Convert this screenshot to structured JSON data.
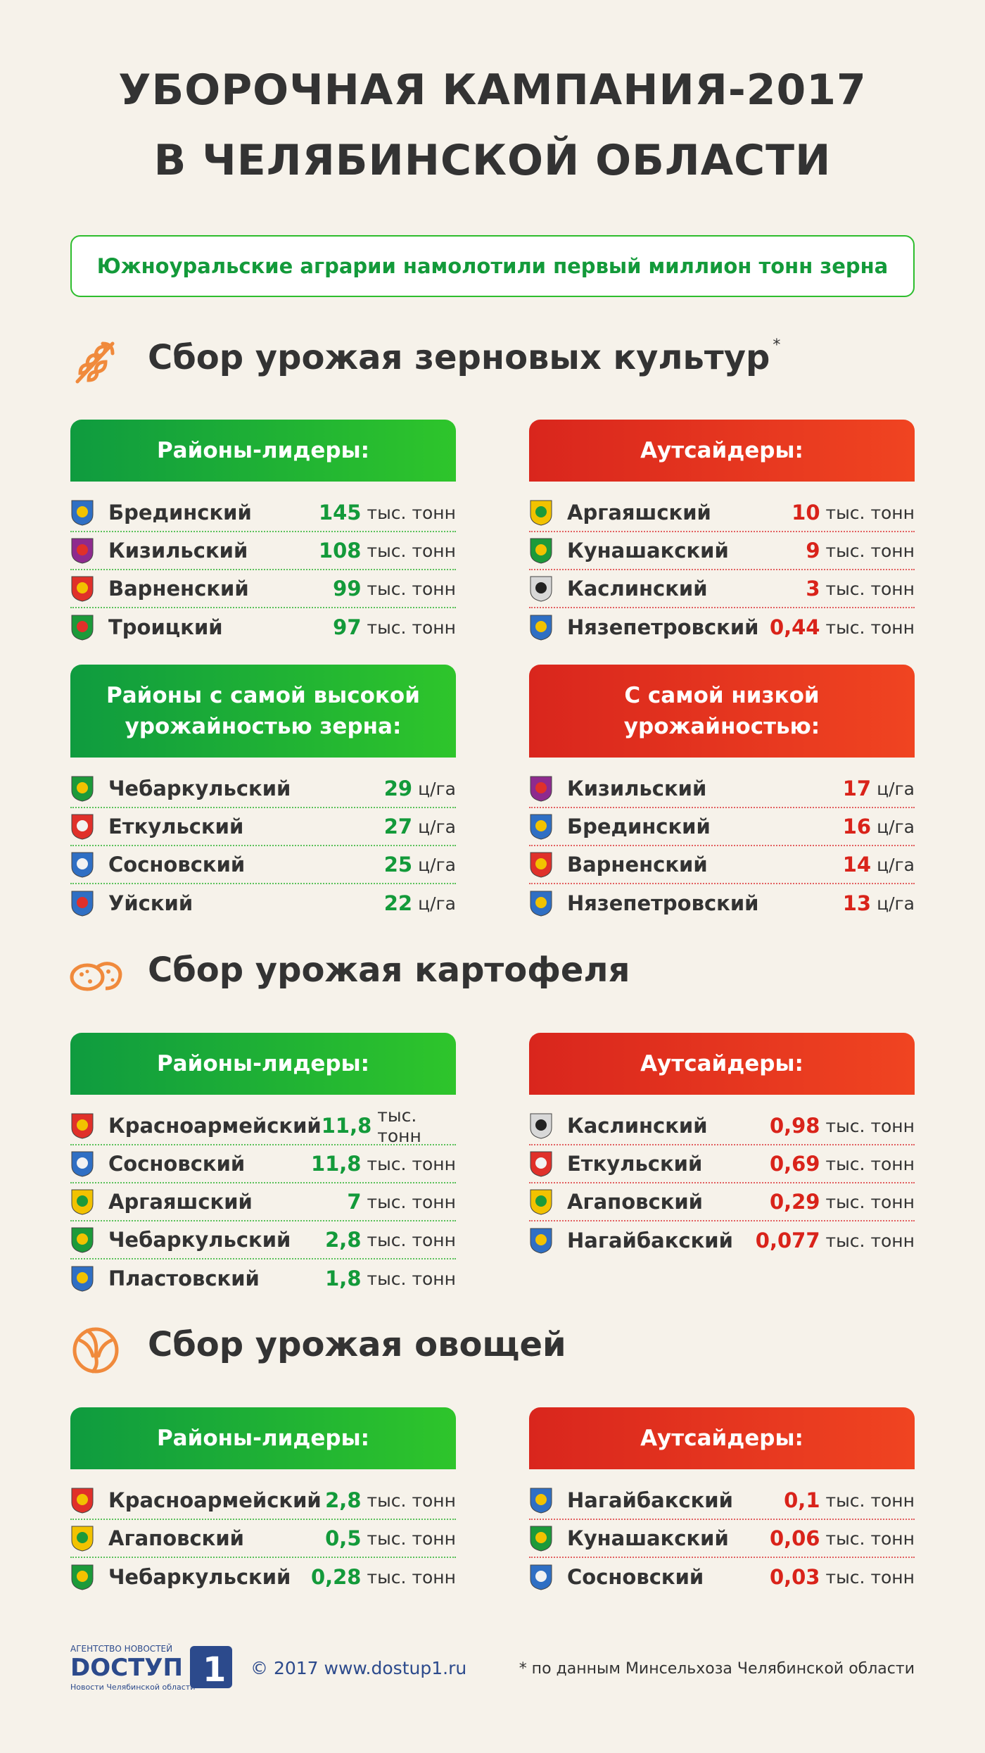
{
  "title": {
    "line1": "УБОРОЧНАЯ КАМПАНИЯ-2017",
    "line2": "В ЧЕЛЯБИНСКОЙ ОБЛАСТИ"
  },
  "subtitle": "Южноуральские аграрии намолотили первый миллион тонн зерна",
  "sections": {
    "grain": {
      "title": "Сбор урожая зерновых культур",
      "asterisk": "*",
      "icon": "wheat-icon",
      "leaders": {
        "header": "Районы-лидеры:",
        "rows": [
          {
            "name": "Брединский",
            "value": "145",
            "unit": "тыс. тонн",
            "icon": "bredinsky-emblem-icon"
          },
          {
            "name": "Кизильский",
            "value": "108",
            "unit": "тыс. тонн",
            "icon": "kizilsky-emblem-icon"
          },
          {
            "name": "Варненский",
            "value": "99",
            "unit": "тыс. тонн",
            "icon": "varnensky-emblem-icon"
          },
          {
            "name": "Троицкий",
            "value": "97",
            "unit": "тыс. тонн",
            "icon": "troitsky-emblem-icon"
          }
        ]
      },
      "outsiders": {
        "header": "Аутсайдеры:",
        "rows": [
          {
            "name": "Аргаяшский",
            "value": "10",
            "unit": "тыс. тонн",
            "icon": "argayashsky-emblem-icon"
          },
          {
            "name": "Кунашакский",
            "value": "9",
            "unit": "тыс. тонн",
            "icon": "kunashaksky-emblem-icon"
          },
          {
            "name": "Каслинский",
            "value": "3",
            "unit": "тыс. тонн",
            "icon": "kaslinsky-emblem-icon"
          },
          {
            "name": "Нязепетровский",
            "value": "0,44",
            "unit": "тыс. тонн",
            "icon": "nyazepetrovsky-emblem-icon"
          }
        ]
      },
      "high_yield": {
        "header": "Районы с самой высокой\nурожайностью зерна:",
        "rows": [
          {
            "name": "Чебаркульский",
            "value": "29",
            "unit": "ц/га",
            "icon": "chebarkulsky-emblem-icon"
          },
          {
            "name": "Еткульский",
            "value": "27",
            "unit": "ц/га",
            "icon": "etkulsky-emblem-icon"
          },
          {
            "name": "Сосновский",
            "value": "25",
            "unit": "ц/га",
            "icon": "sosnovsky-emblem-icon"
          },
          {
            "name": "Уйский",
            "value": "22",
            "unit": "ц/га",
            "icon": "uysky-emblem-icon"
          }
        ]
      },
      "low_yield": {
        "header": "С самой низкой\nурожайностью:",
        "rows": [
          {
            "name": "Кизильский",
            "value": "17",
            "unit": "ц/га",
            "icon": "kizilsky-emblem-icon"
          },
          {
            "name": "Брединский",
            "value": "16",
            "unit": "ц/га",
            "icon": "bredinsky-emblem-icon"
          },
          {
            "name": "Варненский",
            "value": "14",
            "unit": "ц/га",
            "icon": "varnensky-emblem-icon"
          },
          {
            "name": "Нязепетровский",
            "value": "13",
            "unit": "ц/га",
            "icon": "nyazepetrovsky-emblem-icon"
          }
        ]
      }
    },
    "potato": {
      "title": "Сбор урожая картофеля",
      "icon": "potato-icon",
      "leaders": {
        "header": "Районы-лидеры:",
        "rows": [
          {
            "name": "Красноармейский",
            "value": "11,8",
            "unit": "тыс. тонн",
            "icon": "krasnoarmeysky-emblem-icon"
          },
          {
            "name": "Сосновский",
            "value": "11,8",
            "unit": "тыс. тонн",
            "icon": "sosnovsky-emblem-icon"
          },
          {
            "name": "Аргаяшский",
            "value": "7",
            "unit": "тыс. тонн",
            "icon": "argayashsky-emblem-icon"
          },
          {
            "name": "Чебаркульский",
            "value": "2,8",
            "unit": "тыс. тонн",
            "icon": "chebarkulsky-emblem-icon"
          },
          {
            "name": "Пластовский",
            "value": "1,8",
            "unit": "тыс. тонн",
            "icon": "plastovsky-emblem-icon"
          }
        ]
      },
      "outsiders": {
        "header": "Аутсайдеры:",
        "rows": [
          {
            "name": "Каслинский",
            "value": "0,98",
            "unit": "тыс. тонн",
            "icon": "kaslinsky-emblem-icon"
          },
          {
            "name": "Еткульский",
            "value": "0,69",
            "unit": "тыс. тонн",
            "icon": "etkulsky-emblem-icon"
          },
          {
            "name": "Агаповский",
            "value": "0,29",
            "unit": "тыс. тонн",
            "icon": "agapovsky-emblem-icon"
          },
          {
            "name": "Нагайбакский",
            "value": "0,077",
            "unit": "тыс. тонн",
            "icon": "nagaybaksky-emblem-icon"
          }
        ]
      }
    },
    "vegetables": {
      "title": "Сбор урожая овощей",
      "icon": "cabbage-icon",
      "leaders": {
        "header": "Районы-лидеры:",
        "rows": [
          {
            "name": "Красноармейский",
            "value": "2,8",
            "unit": "тыс. тонн",
            "icon": "krasnoarmeysky-emblem-icon"
          },
          {
            "name": "Агаповский",
            "value": "0,5",
            "unit": "тыс. тонн",
            "icon": "agapovsky-emblem-icon"
          },
          {
            "name": "Чебаркульский",
            "value": "0,28",
            "unit": "тыс. тонн",
            "icon": "chebarkulsky-emblem-icon"
          }
        ]
      },
      "outsiders": {
        "header": "Аутсайдеры:",
        "rows": [
          {
            "name": "Нагайбакский",
            "value": "0,1",
            "unit": "тыс. тонн",
            "icon": "nagaybaksky-emblem-icon"
          },
          {
            "name": "Кунашакский",
            "value": "0,06",
            "unit": "тыс. тонн",
            "icon": "kunashaksky-emblem-icon"
          },
          {
            "name": "Сосновский",
            "value": "0,03",
            "unit": "тыс. тонн",
            "icon": "sosnovsky-emblem-icon"
          }
        ]
      }
    }
  },
  "footer": {
    "logo": {
      "top": "АГЕНТСТВО НОВОСТЕЙ",
      "brand": "DOCTУП",
      "mark": "1",
      "tagline": "Новости Челябинской области"
    },
    "copyright": "© 2017 www.dostup1.ru",
    "note": "* по данным Минсельхоза Челябинской области"
  },
  "colors": {
    "green": "#139a3a",
    "red": "#d9231a",
    "orange": "#f08a3c",
    "background": "#f6f2ea"
  }
}
